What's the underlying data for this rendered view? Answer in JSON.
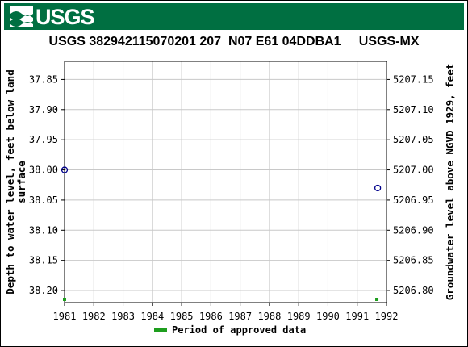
{
  "brand": {
    "logo_text": "USGS",
    "header_color": "#006F41"
  },
  "chart_data": {
    "type": "scatter",
    "title": "USGS 382942115070201 207  N07 E61 04DDBA1     USGS-MX",
    "ylabel_left": "Depth to water level, feet below land surface",
    "ylabel_right": "Groundwater level above NGVD 1929, feet",
    "x_ticks": [
      "1981",
      "1982",
      "1983",
      "1984",
      "1985",
      "1986",
      "1987",
      "1988",
      "1989",
      "1990",
      "1991",
      "1992"
    ],
    "xlim": [
      1981,
      1992
    ],
    "y_left_ticks": [
      "37.85",
      "37.90",
      "37.95",
      "38.00",
      "38.05",
      "38.10",
      "38.15",
      "38.20"
    ],
    "y_right_ticks": [
      "5207.15",
      "5207.10",
      "5207.05",
      "5207.00",
      "5206.95",
      "5206.90",
      "5206.85",
      "5206.80"
    ],
    "ylim_left": [
      37.82,
      38.22
    ],
    "y_inverted": true,
    "grid": true,
    "series": [
      {
        "name": "",
        "marker": "open-circle",
        "color": "#00008B",
        "points": [
          {
            "x": 1981.0,
            "y": 38.0
          },
          {
            "x": 1991.7,
            "y": 38.03
          }
        ]
      }
    ],
    "approved_periods": [
      {
        "x": 1981.0,
        "color": "#1e9e1e"
      },
      {
        "x": 1991.67,
        "color": "#1e9e1e"
      }
    ],
    "legend": {
      "label": "Period of approved data",
      "color": "#1e9e1e",
      "position": "bottom-center"
    }
  }
}
